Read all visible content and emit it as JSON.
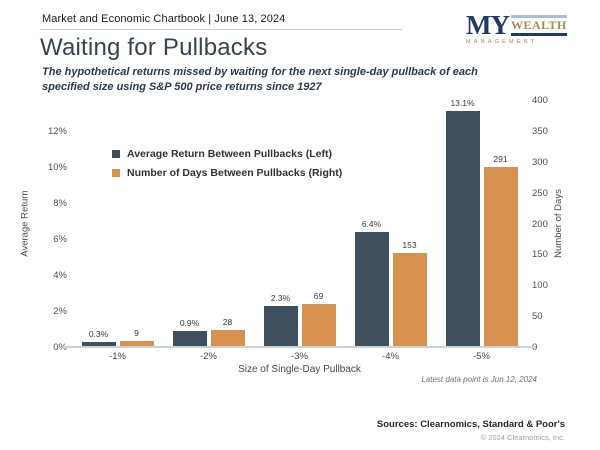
{
  "header": {
    "eyebrow": "Market and Economic Chartbook | June 13, 2024",
    "title": "Waiting for Pullbacks",
    "subtitle": "The hypothetical returns missed by waiting for the next single-day pullback of each specified size using S&P 500 price returns since 1927"
  },
  "logo": {
    "primary": "MY",
    "secondary": "WEALTH",
    "tertiary": "MANAGEMENT",
    "navy": "#1f3a66",
    "gold": "#a8894a",
    "light_blue": "#a9c0d4"
  },
  "chart_data": {
    "type": "bar",
    "title": "Waiting for Pullbacks",
    "categories": [
      "-1%",
      "-2%",
      "-3%",
      "-4%",
      "-5%"
    ],
    "series": [
      {
        "name": "Average Return Between Pullbacks (Left)",
        "axis": "left",
        "color": "#3e4f5e",
        "values": [
          0.3,
          0.9,
          2.3,
          6.4,
          13.1
        ],
        "labels": [
          "0.3%",
          "0.9%",
          "2.3%",
          "6.4%",
          "13.1%"
        ]
      },
      {
        "name": "Number of Days Between Pullbacks (Right)",
        "axis": "right",
        "color": "#d8924f",
        "values": [
          9,
          28,
          69,
          153,
          291
        ],
        "labels": [
          "9",
          "28",
          "69",
          "153",
          "291"
        ]
      }
    ],
    "xlabel": "Size of Single-Day Pullback",
    "left_axis": {
      "label": "Average Return",
      "ticks": [
        "0%",
        "2%",
        "4%",
        "6%",
        "8%",
        "10%",
        "12%"
      ],
      "tick_values": [
        0,
        2,
        4,
        6,
        8,
        10,
        12
      ],
      "axis_max": 13.714
    },
    "right_axis": {
      "label": "Number of Days",
      "ticks": [
        "0",
        "50",
        "100",
        "150",
        "200",
        "250",
        "300",
        "350",
        "400"
      ],
      "tick_values": [
        0,
        50,
        100,
        150,
        200,
        250,
        300,
        350,
        400
      ],
      "axis_max": 400
    },
    "legend_position": "upper-left-inside",
    "grid": false
  },
  "footnotes": {
    "latest": "Latest data point is Jun 12, 2024",
    "sources": "Sources: Clearnomics, Standard & Poor's",
    "copyright": "© 2024 Clearnomics, Inc."
  }
}
